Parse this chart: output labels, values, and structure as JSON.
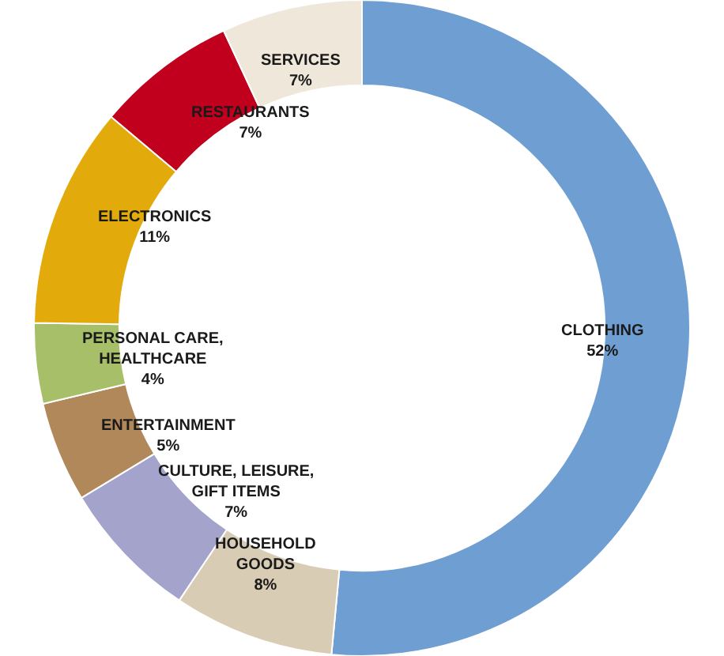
{
  "chart_data": {
    "type": "donut",
    "categories": [
      "CLOTHING",
      "HOUSEHOLD\nGOODS",
      "CULTURE, LEISURE,\nGIFT ITEMS",
      "ENTERTAINMENT",
      "PERSONAL CARE,\nHEALTHCARE",
      "ELECTRONICS",
      "RESTAURANTS",
      "SERVICES"
    ],
    "values": [
      52,
      8,
      7,
      5,
      4,
      11,
      7,
      7
    ],
    "value_labels": [
      "52%",
      "8%",
      "7%",
      "5%",
      "4%",
      "11%",
      "7%",
      "7%"
    ],
    "colors": [
      "#6f9fd2",
      "#d8ccb4",
      "#a3a3cc",
      "#b0885a",
      "#a8bf6a",
      "#e2ab0b",
      "#c0001c",
      "#efe8da"
    ],
    "legend": false
  }
}
